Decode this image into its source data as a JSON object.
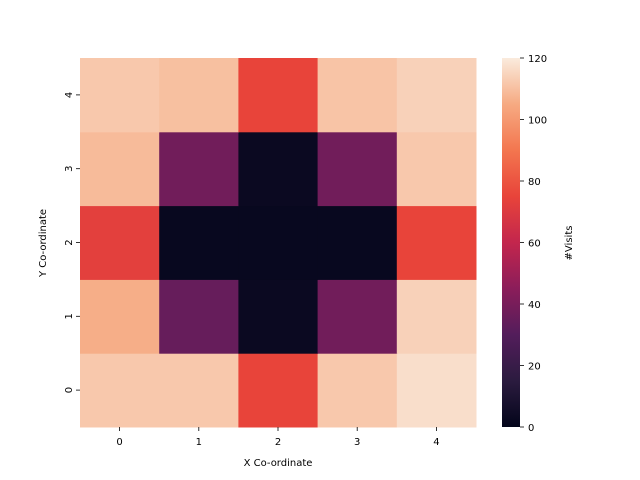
{
  "chart_data": {
    "type": "heatmap",
    "title": "",
    "xlabel": "X Co-ordinate",
    "ylabel": "Y Co-ordinate",
    "x": [
      "0",
      "1",
      "2",
      "3",
      "4"
    ],
    "y": [
      "0",
      "1",
      "2",
      "3",
      "4"
    ],
    "values": [
      [
        112,
        112,
        75,
        112,
        117
      ],
      [
        106,
        35,
        3,
        38,
        114
      ],
      [
        73,
        2,
        2,
        2,
        75
      ],
      [
        109,
        38,
        3,
        38,
        112
      ],
      [
        112,
        110,
        75,
        111,
        114
      ]
    ],
    "colorbar": {
      "label": "#Visits",
      "range": [
        0,
        120
      ],
      "ticks": [
        "0",
        "20",
        "40",
        "60",
        "80",
        "100",
        "120"
      ]
    },
    "grid": false,
    "colormap": "rocket"
  }
}
